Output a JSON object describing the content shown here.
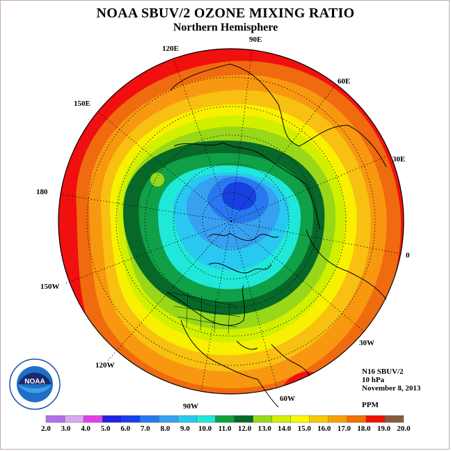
{
  "header": {
    "title": "NOAA SBUV/2 OZONE MIXING RATIO",
    "subtitle": "Northern Hemisphere"
  },
  "longitude_labels": {
    "e120": "120E",
    "e90": "90E",
    "e60": "60E",
    "e150": "150E",
    "e30": "30E",
    "deg180": "180",
    "deg0": "0",
    "w150": "150W",
    "w30": "30W",
    "w120": "120W",
    "w60": "60W",
    "w90": "90W"
  },
  "info": {
    "instrument": "N16 SBUV/2",
    "level": "10 hPa",
    "date": "November 8, 2013",
    "unit": "PPM"
  },
  "colorbar": {
    "values": [
      "2.0",
      "3.0",
      "4.0",
      "5.0",
      "6.0",
      "7.0",
      "8.0",
      "9.0",
      "10.0",
      "11.0",
      "12.0",
      "13.0",
      "14.0",
      "15.0",
      "16.0",
      "17.0",
      "18.0",
      "19.0",
      "20.0"
    ],
    "colors": [
      "#b070e8",
      "#d8a8f0",
      "#e040e8",
      "#2020e0",
      "#1840f0",
      "#2878f0",
      "#38a0f0",
      "#28c8f0",
      "#20e8d8",
      "#10a040",
      "#086828",
      "#98d818",
      "#d0f000",
      "#f8f800",
      "#f8c800",
      "#f8a000",
      "#f07000",
      "#f01000",
      "#8b5a3c"
    ]
  },
  "map": {
    "band_colors_outer_to_inner": [
      "#f01010",
      "#f06a10",
      "#f89810",
      "#f8c010",
      "#f8f000",
      "#d0f000",
      "#98d818",
      "#108c3c",
      "#10a048",
      "#20e8d8",
      "#38a0f0",
      "#2878f0",
      "#1840e0"
    ],
    "logo_text": "NOAA"
  }
}
